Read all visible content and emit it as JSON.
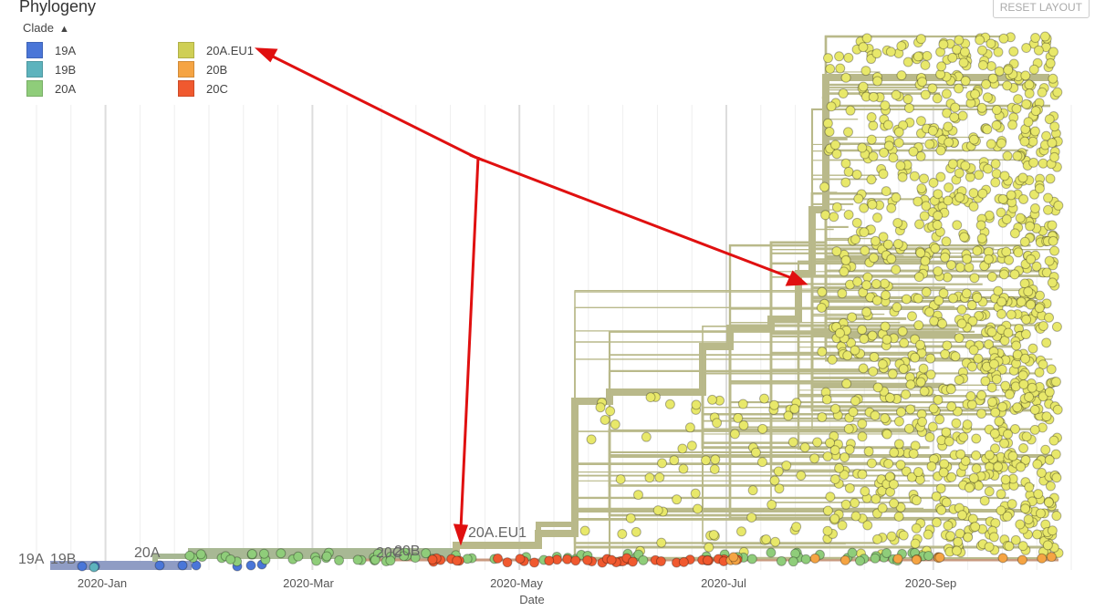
{
  "panel": {
    "title": "Phylogeny",
    "reset_label": "RESET LAYOUT",
    "legend_title": "Clade"
  },
  "legend": [
    {
      "label": "19A",
      "color": "#4a76d8"
    },
    {
      "label": "19B",
      "color": "#5db3bd"
    },
    {
      "label": "20A",
      "color": "#8fcd7a"
    },
    {
      "label": "20A.EU1",
      "color": "#cfcf55"
    },
    {
      "label": "20B",
      "color": "#f5a443"
    },
    {
      "label": "20C",
      "color": "#f0592f"
    }
  ],
  "chart_data": {
    "type": "scatter",
    "title": "Phylogeny",
    "xlabel": "Date",
    "x_ticks": [
      "2020-Jan",
      "2020-Mar",
      "2020-May",
      "2020-Jul",
      "2020-Sep"
    ],
    "clade_labels": [
      "19A",
      "19B",
      "20A",
      "20C",
      "20B",
      "20A.EU1"
    ],
    "color_by": "Clade",
    "grid": true,
    "annotation": "Red arrows point from 20A.EU1 legend entry to the 20A.EU1 branch origin and expansion"
  }
}
